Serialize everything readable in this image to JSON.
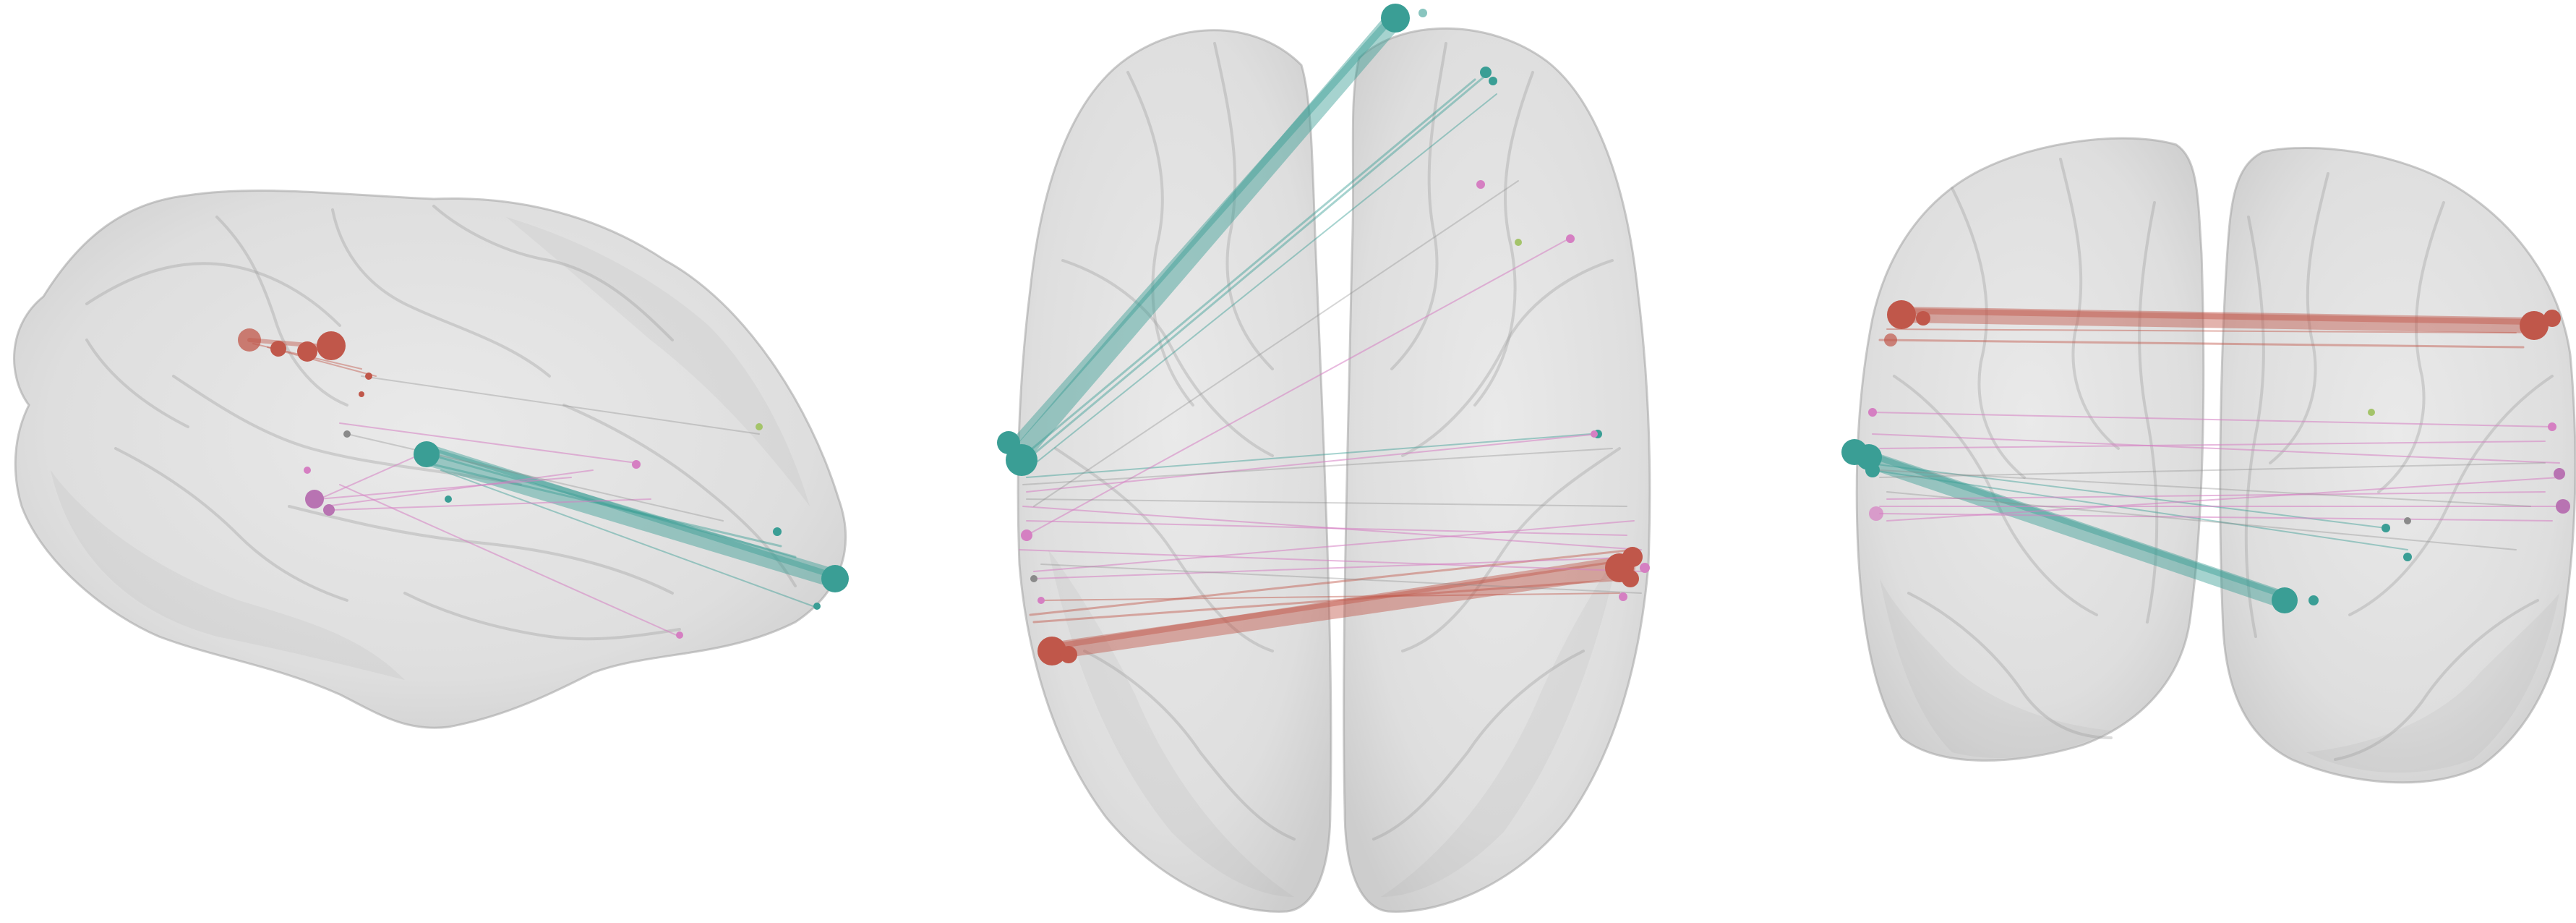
{
  "figure": {
    "views": [
      {
        "id": "lateral"
      },
      {
        "id": "axial"
      },
      {
        "id": "coronal"
      }
    ]
  },
  "colors": {
    "background": "#ffffff",
    "brain_fill": "#d9d9d9",
    "teal": "#3a9e95",
    "red": "#c0574a",
    "pink": "#d57fc2",
    "gray": "#8a8a8a",
    "green": "#a4c46a"
  }
}
